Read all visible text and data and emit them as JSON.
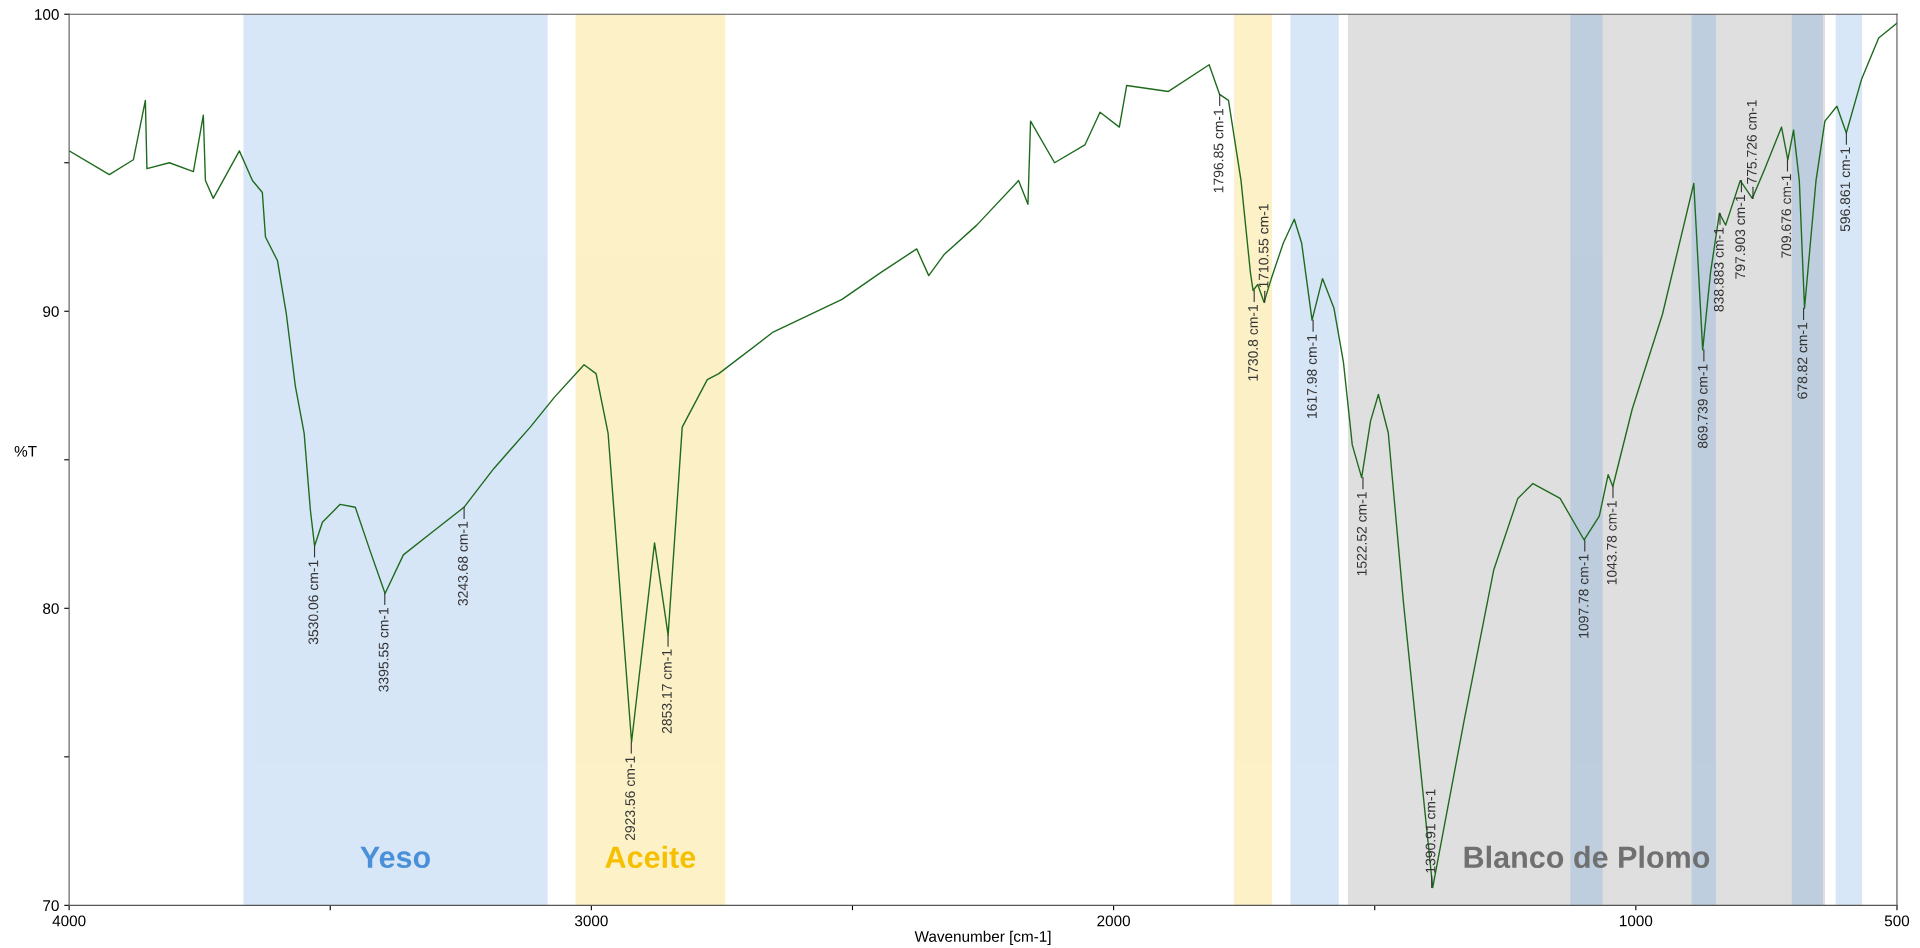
{
  "chart_data": {
    "type": "line",
    "xlabel": "Wavenumber [cm-1]",
    "ylabel": "%T",
    "xlim": [
      4000,
      500
    ],
    "ylim": [
      70,
      100
    ],
    "xticks": [
      4000,
      {
        "value": 3500,
        "label": null
      },
      3000,
      {
        "value": 2500,
        "label": null
      },
      2000,
      {
        "value": 1500,
        "label": null
      },
      1000,
      500
    ],
    "yticks": [
      70,
      {
        "value": 75,
        "label": null
      },
      80,
      {
        "value": 85,
        "label": null
      },
      90,
      {
        "value": 95,
        "label": null
      },
      100
    ],
    "grid": false,
    "legend": false,
    "marker": "none",
    "line_style": "solid",
    "series": [
      {
        "color": "#1e6b1e",
        "x": [
          4000,
          3923,
          3877,
          3854,
          3851,
          3808,
          3762,
          3743,
          3739,
          3724,
          3674,
          3649,
          3630,
          3624,
          3601,
          3584,
          3567,
          3550,
          3538,
          3530,
          3515,
          3481,
          3452,
          3423,
          3395,
          3360,
          3302,
          3244,
          3187,
          3117,
          3071,
          3014,
          2991,
          2968,
          2923,
          2879,
          2853,
          2826,
          2778,
          2756,
          2652,
          2520,
          2446,
          2377,
          2354,
          2325,
          2262,
          2182,
          2164,
          2159,
          2113,
          2055,
          2026,
          1989,
          1975,
          1895,
          1817,
          1797,
          1780,
          1756,
          1738,
          1733,
          1724,
          1712,
          1698,
          1675,
          1654,
          1640,
          1620,
          1600,
          1578,
          1560,
          1543,
          1525,
          1508,
          1493,
          1474,
          1445,
          1389,
          1329,
          1272,
          1226,
          1197,
          1145,
          1099,
          1070,
          1053,
          1044,
          1007,
          949,
          889,
          872,
          857,
          840,
          828,
          800,
          777,
          753,
          721,
          709,
          698,
          687,
          677,
          655,
          638,
          615,
          597,
          568,
          535,
          500
        ],
        "values": [
          95.4,
          94.6,
          95.1,
          97.1,
          94.8,
          95.0,
          94.7,
          96.6,
          94.4,
          93.8,
          95.4,
          94.4,
          94.0,
          92.5,
          91.7,
          89.9,
          87.5,
          85.9,
          83.3,
          82.1,
          82.9,
          83.5,
          83.4,
          81.9,
          80.5,
          81.8,
          82.6,
          83.4,
          84.7,
          86.1,
          87.1,
          88.2,
          87.9,
          85.9,
          75.5,
          82.2,
          79.1,
          86.1,
          87.7,
          87.9,
          89.3,
          90.4,
          91.3,
          92.1,
          91.2,
          91.9,
          92.9,
          94.4,
          93.6,
          96.4,
          95.0,
          95.6,
          96.7,
          96.2,
          97.6,
          97.4,
          98.3,
          97.3,
          97.1,
          94.4,
          91.3,
          90.7,
          90.9,
          90.3,
          91.1,
          92.3,
          93.1,
          92.3,
          89.7,
          91.1,
          90.1,
          88.3,
          85.5,
          84.4,
          86.3,
          87.2,
          85.9,
          80.2,
          70.6,
          76.2,
          81.3,
          83.7,
          84.2,
          83.7,
          82.3,
          83.1,
          84.5,
          84.1,
          86.7,
          89.9,
          94.3,
          88.7,
          91.3,
          93.3,
          92.9,
          94.4,
          93.8,
          94.8,
          96.2,
          95.1,
          96.1,
          94.4,
          90.1,
          94.4,
          96.4,
          96.9,
          96.0,
          97.8,
          99.2,
          99.7
        ]
      }
    ],
    "bands": [
      {
        "axis": "x",
        "from": 3663,
        "to": 3087,
        "label": "Yeso",
        "color": "#4a90d9"
      },
      {
        "axis": "x",
        "from": 3027,
        "to": 2747,
        "label": "Aceite",
        "color": "#f5c000"
      },
      {
        "axis": "x",
        "from": 1548,
        "to": 641,
        "label": "Blanco de Plomo",
        "color": "#707070"
      },
      {
        "axis": "x",
        "from": 1766,
        "to": 1700,
        "label": null,
        "color": "#f5c000"
      },
      {
        "axis": "x",
        "from": 1658,
        "to": 1572,
        "label": null,
        "color": "#4a90d9"
      },
      {
        "axis": "x",
        "from": 1122,
        "to": 1067,
        "label": null,
        "color": "#4a90d9"
      },
      {
        "axis": "x",
        "from": 890,
        "to": 850,
        "label": null,
        "color": "#4a90d9"
      },
      {
        "axis": "x",
        "from": 698,
        "to": 645,
        "label": null,
        "color": "#4a90d9"
      },
      {
        "axis": "x",
        "from": 614,
        "to": 570,
        "label": null,
        "color": "#4a90d9"
      }
    ],
    "annotations": [
      {
        "text": "3530.06 cm-1",
        "x": 3530.06,
        "y": 82.1
      },
      {
        "text": "3395.55 cm-1",
        "x": 3395.55,
        "y": 80.5
      },
      {
        "text": "3243.68 cm-1",
        "x": 3243.68,
        "y": 83.4
      },
      {
        "text": "2923.56 cm-1",
        "x": 2923.56,
        "y": 75.5
      },
      {
        "text": "2853.17 cm-1",
        "x": 2853.17,
        "y": 79.1
      },
      {
        "text": "1796.85 cm-1",
        "x": 1796.85,
        "y": 97.3
      },
      {
        "text": "1730.8 cm-1",
        "x": 1730.8,
        "y": 90.7
      },
      {
        "text": "1710.55 cm-1",
        "x": 1710.55,
        "y": 90.3
      },
      {
        "text": "1617.98 cm-1",
        "x": 1617.98,
        "y": 89.7
      },
      {
        "text": "1522.52 cm-1",
        "x": 1522.52,
        "y": 84.4
      },
      {
        "text": "1390.91 cm-1",
        "x": 1390.91,
        "y": 70.6
      },
      {
        "text": "1097.78 cm-1",
        "x": 1097.78,
        "y": 82.3
      },
      {
        "text": "1043.78 cm-1",
        "x": 1043.78,
        "y": 84.1
      },
      {
        "text": "869.739 cm-1",
        "x": 869.739,
        "y": 88.7
      },
      {
        "text": "838.883 cm-1",
        "x": 838.883,
        "y": 93.3
      },
      {
        "text": "797.903 cm-1",
        "x": 797.903,
        "y": 94.4
      },
      {
        "text": "775.726 cm-1",
        "x": 775.726,
        "y": 93.8
      },
      {
        "text": "709.676 cm-1",
        "x": 709.676,
        "y": 95.1
      },
      {
        "text": "678.82 cm-1",
        "x": 678.82,
        "y": 90.1
      },
      {
        "text": "596.861 cm-1",
        "x": 596.861,
        "y": 96.0
      }
    ]
  }
}
